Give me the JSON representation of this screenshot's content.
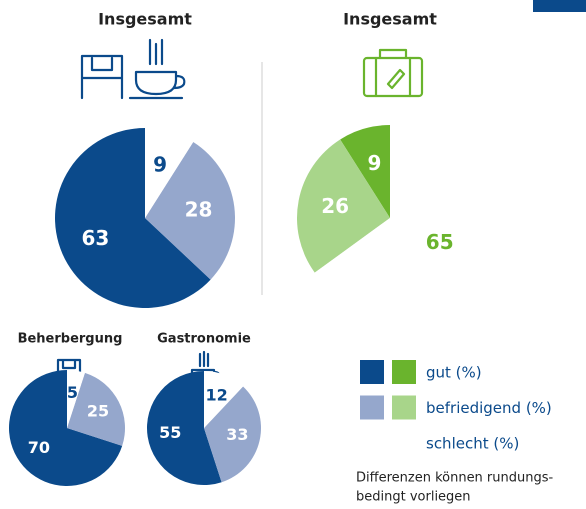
{
  "chart_data": [
    {
      "type": "pie",
      "title": "Insgesamt",
      "values": [
        63,
        28,
        9
      ],
      "colors": [
        "#0b4a8b",
        "#95a7cc",
        "#ffffff"
      ],
      "label_colors": [
        "#ffffff",
        "#ffffff",
        "#0b4a8b"
      ]
    },
    {
      "type": "pie",
      "title": "Insgesamt",
      "values": [
        9,
        26,
        65
      ],
      "colors": [
        "#6ab42d",
        "#a8d58a",
        "#ffffff"
      ],
      "label_colors": [
        "#ffffff",
        "#ffffff",
        "#6ab42d"
      ]
    },
    {
      "type": "pie",
      "title": "Beherbergung",
      "values": [
        70,
        25,
        5
      ],
      "colors": [
        "#0b4a8b",
        "#95a7cc",
        "#ffffff"
      ],
      "label_colors": [
        "#ffffff",
        "#ffffff",
        "#0b4a8b"
      ]
    },
    {
      "type": "pie",
      "title": "Gastronomie",
      "values": [
        55,
        33,
        12
      ],
      "colors": [
        "#0b4a8b",
        "#95a7cc",
        "#ffffff"
      ],
      "label_colors": [
        "#ffffff",
        "#ffffff",
        "#0b4a8b"
      ]
    }
  ],
  "legend": {
    "items": [
      {
        "label": "gut (%)",
        "colors": [
          "#0b4a8b",
          "#6ab42d"
        ]
      },
      {
        "label": "befriedigend (%)",
        "colors": [
          "#95a7cc",
          "#a8d58a"
        ]
      },
      {
        "label": "schlecht (%)",
        "colors": [
          "#ffffff",
          "#ffffff"
        ]
      }
    ],
    "note": [
      "Differenzen können rundungs-",
      "bedingt vorliegen"
    ]
  }
}
